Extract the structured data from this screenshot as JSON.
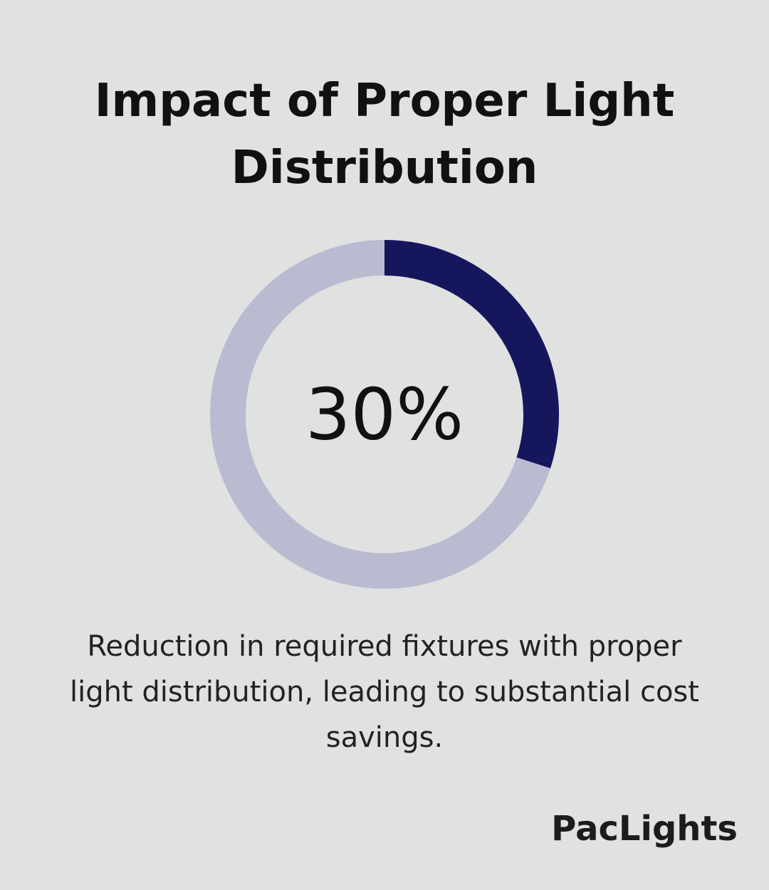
{
  "title": {
    "line1": "Impact of Proper Light",
    "line2": "Distribution"
  },
  "chart_data": {
    "type": "pie",
    "variant": "donut",
    "values": [
      30,
      70
    ],
    "center_label": "30%",
    "colors": {
      "highlight": "#16165c",
      "track": "#babbd0"
    }
  },
  "description": {
    "line1": "Reduction in required fixtures with proper",
    "line2": "light distribution, leading to substantial cost",
    "line3": "savings."
  },
  "brand": "PacLights",
  "colors": {
    "background": "#e0e2e1"
  }
}
